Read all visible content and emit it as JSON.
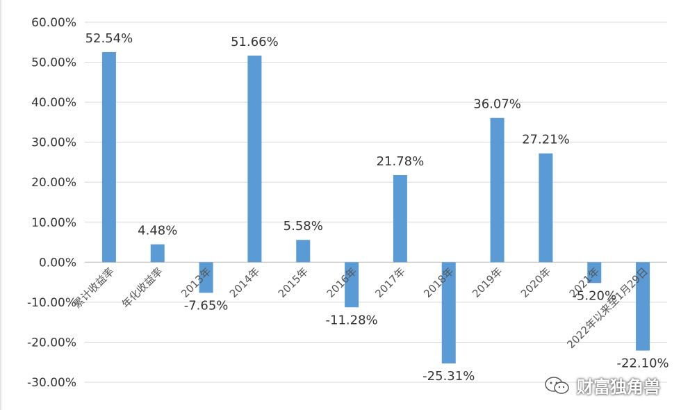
{
  "chart_data": {
    "type": "bar",
    "title": "",
    "xlabel": "",
    "ylabel": "",
    "ylim": [
      -30,
      60
    ],
    "yticks": [
      60,
      50,
      40,
      30,
      20,
      10,
      0,
      -10,
      -20,
      -30
    ],
    "ytick_labels": [
      "60.00%",
      "50.00%",
      "40.00%",
      "30.00%",
      "20.00%",
      "10.00%",
      "0.00%",
      "-10.00%",
      "-20.00%",
      "-30.00%"
    ],
    "grid": true,
    "bar_color": "#5b9bd5",
    "categories": [
      "累计收益率",
      "年化收益率",
      "2013年",
      "2014年",
      "2015年",
      "2016年",
      "2017年",
      "2018年",
      "2019年",
      "2020年",
      "2021年",
      "2022年以来至1月29日"
    ],
    "values": [
      52.54,
      4.48,
      -7.65,
      51.66,
      5.58,
      -11.28,
      21.78,
      -25.31,
      36.07,
      27.21,
      -5.2,
      -22.1
    ],
    "value_labels": [
      "52.54%",
      "4.48%",
      "-7.65%",
      "51.66%",
      "5.58%",
      "-11.28%",
      "21.78%",
      "-25.31%",
      "36.07%",
      "27.21%",
      "-5.20%",
      "-22.10%"
    ]
  },
  "watermark": {
    "text": "财富独角兽",
    "icon": "wechat-icon"
  }
}
